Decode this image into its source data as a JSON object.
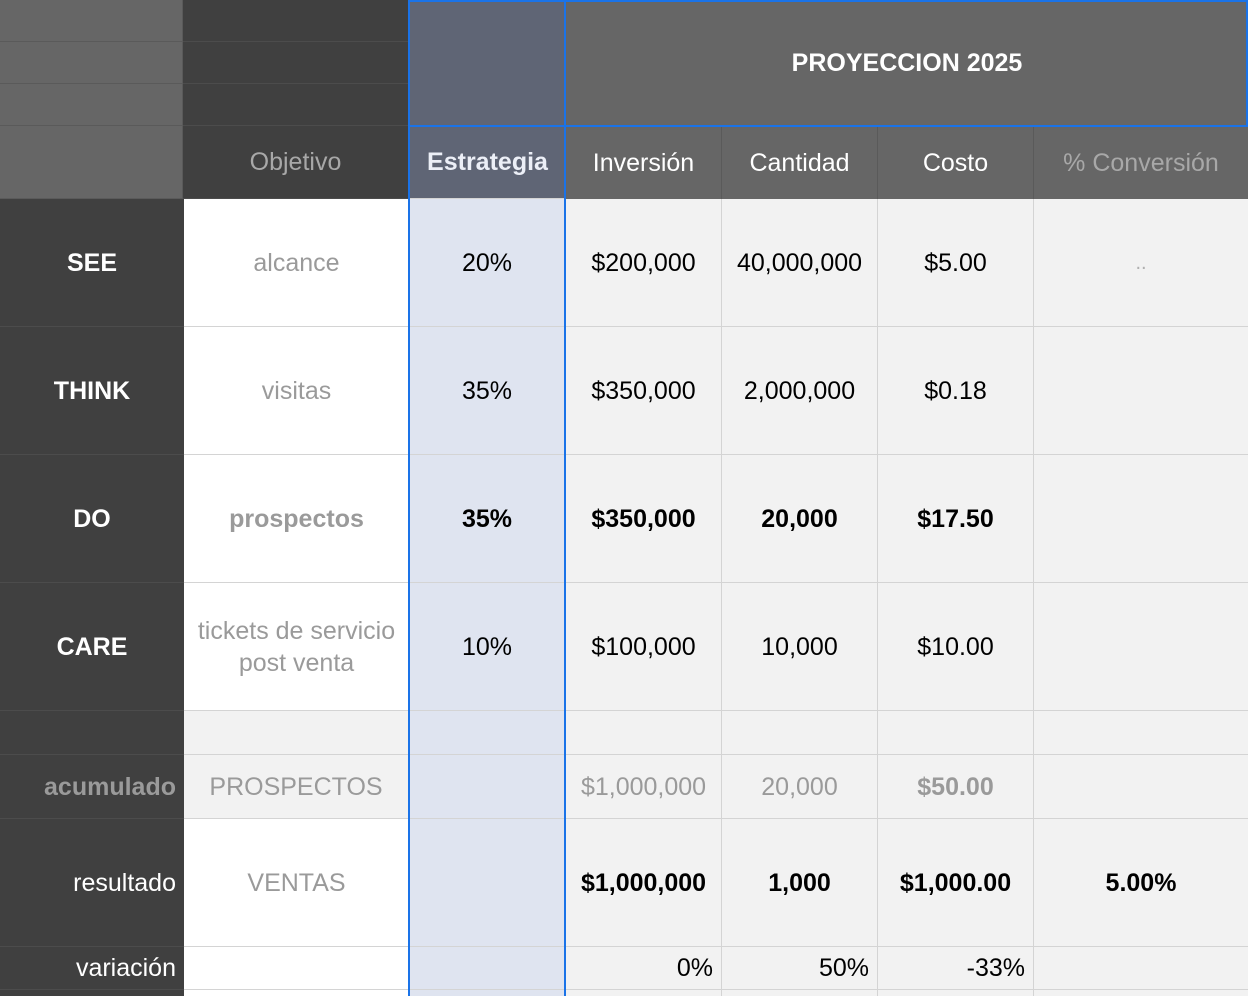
{
  "title": "PROYECCION 2025",
  "headers": {
    "objetivo": "Objetivo",
    "estrategia": "Estrategia",
    "inversion": "Inversión",
    "cantidad": "Cantidad",
    "costo": "Costo",
    "conversion": "% Conversión"
  },
  "rows": [
    {
      "label": "SEE",
      "objetivo": "alcance",
      "estrategia": "20%",
      "inversion": "$200,000",
      "cantidad": "40,000,000",
      "costo": "$5.00",
      "conversion": ".."
    },
    {
      "label": "THINK",
      "objetivo": "visitas",
      "estrategia": "35%",
      "inversion": "$350,000",
      "cantidad": "2,000,000",
      "costo": "$0.18",
      "conversion": ""
    },
    {
      "label": "DO",
      "objetivo": "prospectos",
      "estrategia": "35%",
      "inversion": "$350,000",
      "cantidad": "20,000",
      "costo": "$17.50",
      "conversion": ""
    },
    {
      "label": "CARE",
      "objetivo": "tickets de servicio post venta",
      "estrategia": "10%",
      "inversion": "$100,000",
      "cantidad": "10,000",
      "costo": "$10.00",
      "conversion": ""
    }
  ],
  "acumulado": {
    "label": "acumulado",
    "objetivo": "PROSPECTOS",
    "inversion": "$1,000,000",
    "cantidad": "20,000",
    "costo": "$50.00"
  },
  "resultado": {
    "label": "resultado",
    "objetivo": "VENTAS",
    "inversion": "$1,000,000",
    "cantidad": "1,000",
    "costo": "$1,000.00",
    "conversion": "5.00%"
  },
  "variacion": {
    "label": "variación",
    "inversion": "0%",
    "cantidad": "50%",
    "costo": "-33%"
  }
}
